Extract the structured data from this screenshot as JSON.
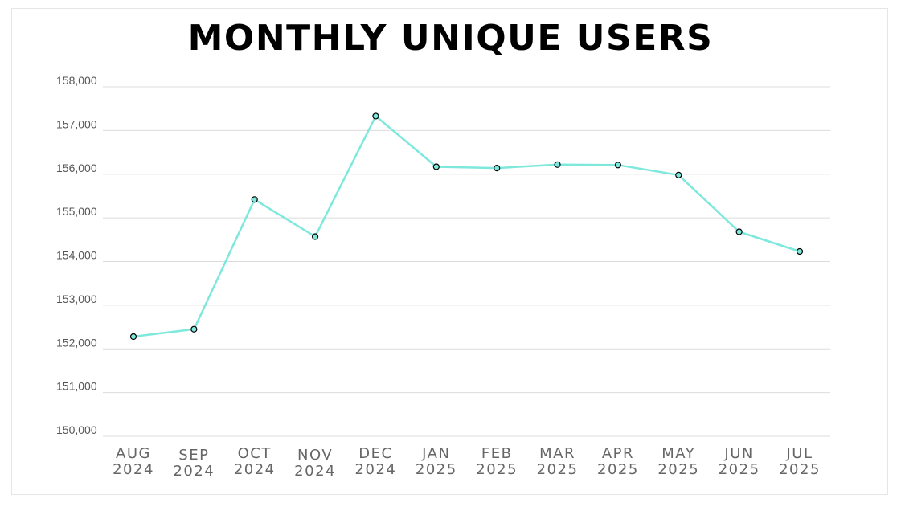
{
  "chart_data": {
    "type": "line",
    "title": "MONTHLY UNIQUE USERS",
    "xlabel": "",
    "ylabel": "",
    "ylim": [
      150000,
      158000
    ],
    "yticks": [
      "150,000",
      "151,000",
      "152,000",
      "153,000",
      "154,000",
      "155,000",
      "156,000",
      "157,000",
      "158,000"
    ],
    "categories": [
      [
        "AUG",
        "2024"
      ],
      [
        "SEP",
        "2024"
      ],
      [
        "OCT",
        "2024"
      ],
      [
        "NOV",
        "2024"
      ],
      [
        "DEC",
        "2024"
      ],
      [
        "JAN",
        "2025"
      ],
      [
        "FEB",
        "2025"
      ],
      [
        "MAR",
        "2025"
      ],
      [
        "APR",
        "2025"
      ],
      [
        "MAY",
        "2025"
      ],
      [
        "JUN",
        "2025"
      ],
      [
        "JUL",
        "2025"
      ]
    ],
    "series": [
      {
        "values": [
          152280,
          152450,
          155420,
          154570,
          157330,
          156170,
          156140,
          156220,
          156210,
          155980,
          154680,
          154230
        ],
        "color": "#7ee8dc"
      }
    ],
    "grid": true,
    "marker_fill": "#7ee8dc",
    "marker_stroke": "#000000"
  }
}
